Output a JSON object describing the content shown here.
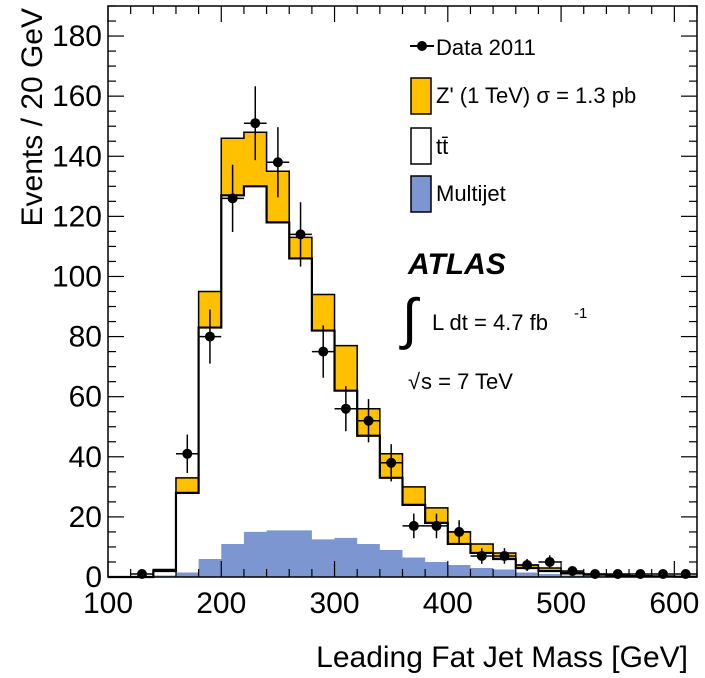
{
  "chart_data": {
    "type": "bar",
    "xlabel": "Leading Fat Jet Mass [GeV]",
    "ylabel": "Events / 20 GeV",
    "xlim": [
      100,
      620
    ],
    "ylim": [
      0,
      190
    ],
    "x_ticks": [
      100,
      200,
      300,
      400,
      500,
      600
    ],
    "y_ticks": [
      0,
      20,
      40,
      60,
      80,
      100,
      120,
      140,
      160,
      180
    ],
    "grid": false,
    "legend_position": "top-right",
    "bin_edges": [
      100,
      120,
      140,
      160,
      180,
      200,
      220,
      240,
      260,
      280,
      300,
      320,
      340,
      360,
      380,
      400,
      420,
      440,
      460,
      480,
      500,
      520,
      540,
      560,
      580,
      600,
      620
    ],
    "series": [
      {
        "name": "Multijet",
        "kind": "filled-histogram",
        "color": "#7b96d0",
        "values": [
          0,
          0,
          0.5,
          1.5,
          6,
          11,
          15,
          15.5,
          15.5,
          12.5,
          13,
          11,
          9,
          6.5,
          5,
          4,
          3,
          2.5,
          1.5,
          1,
          0.5,
          0.3,
          0.2,
          0.2,
          0.1,
          0.1
        ]
      },
      {
        "name": "tt̄",
        "kind": "stacked-histogram",
        "color": "#ffffff",
        "edge_color": "#000000",
        "values": [
          0,
          0,
          2,
          28,
          83,
          127,
          130,
          118,
          106,
          82,
          62,
          47,
          33,
          24,
          18,
          11,
          8,
          6,
          3,
          2,
          1.2,
          0.8,
          0.5,
          0.3,
          0.2,
          0.1
        ]
      },
      {
        "name": "Z' (1 TeV) σ = 1.3 pb",
        "kind": "stacked-histogram",
        "color": "#ffc000",
        "values": [
          0,
          0,
          2.5,
          33,
          95,
          146,
          148,
          135,
          113,
          94,
          77,
          56,
          41,
          30,
          23,
          15,
          11,
          8,
          4,
          3,
          1.5,
          1,
          0.6,
          0.4,
          0.25,
          0.15
        ]
      },
      {
        "name": "Data 2011",
        "kind": "points",
        "color": "#000000",
        "x": [
          130,
          170,
          190,
          210,
          230,
          250,
          270,
          290,
          310,
          330,
          350,
          370,
          390,
          410,
          430,
          450,
          470,
          490,
          510,
          530,
          550,
          570,
          590,
          610
        ],
        "y": [
          1,
          41,
          80,
          126,
          151,
          138,
          114,
          75,
          56,
          52,
          38,
          17,
          17,
          15,
          7,
          7,
          4,
          5,
          2,
          1,
          1,
          1,
          1,
          1
        ],
        "yerr": [
          1,
          6.4,
          9,
          11.2,
          12.3,
          11.7,
          10.7,
          8.7,
          7.5,
          7.2,
          6.2,
          4.1,
          4.1,
          3.9,
          2.6,
          2.6,
          2,
          2.2,
          1.4,
          1,
          1,
          1,
          1,
          1
        ]
      }
    ],
    "annotations": {
      "experiment": "ATLAS",
      "luminosity": "L dt = 4.7 fb",
      "luminosity_exp": "-1",
      "energy_prefix": "√",
      "energy": "s = 7 TeV"
    }
  }
}
